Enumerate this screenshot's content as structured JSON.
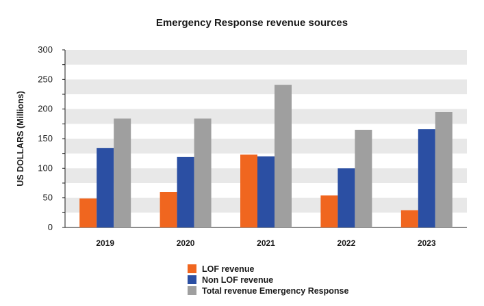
{
  "chart_data": {
    "type": "bar",
    "title": "Emergency Response revenue sources",
    "xlabel": "",
    "ylabel": "US DOLLARS (Millions)",
    "categories": [
      "2019",
      "2020",
      "2021",
      "2022",
      "2023"
    ],
    "series": [
      {
        "name": "LOF revenue",
        "color": "#f0661f",
        "values": [
          49,
          60,
          123,
          54,
          29
        ]
      },
      {
        "name": "Non LOF revenue",
        "color": "#2b4fa3",
        "values": [
          134,
          119,
          120,
          100,
          166
        ]
      },
      {
        "name": "Total revenue Emergency Response",
        "color": "#9f9f9f",
        "values": [
          184,
          184,
          241,
          165,
          195
        ]
      }
    ],
    "ylim": [
      0,
      300
    ],
    "yticks": [
      0,
      50,
      100,
      150,
      200,
      250,
      300
    ],
    "grid": "alternating horizontal bands",
    "legend_position": "bottom"
  }
}
